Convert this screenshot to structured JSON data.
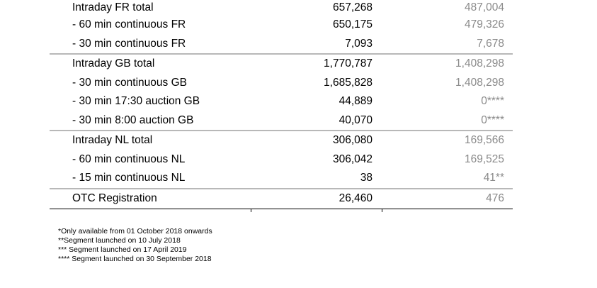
{
  "groups": [
    {
      "rows": [
        {
          "label": "Intraday FR total",
          "v1": "657,268",
          "v2": "487,004"
        },
        {
          "label": "- 60 min continuous FR",
          "v1": "650,175",
          "v2": "479,326"
        },
        {
          "label": "- 30 min continuous FR",
          "v1": "7,093",
          "v2": "7,678"
        }
      ]
    },
    {
      "rows": [
        {
          "label": "Intraday GB total",
          "v1": "1,770,787",
          "v2": "1,408,298"
        },
        {
          "label": "- 30 min continuous GB",
          "v1": "1,685,828",
          "v2": "1,408,298"
        },
        {
          "label": "- 30 min 17:30 auction GB",
          "v1": "44,889",
          "v2": "0****"
        },
        {
          "label": "- 30 min 8:00 auction GB",
          "v1": "40,070",
          "v2": "0****"
        }
      ]
    },
    {
      "rows": [
        {
          "label": "Intraday NL total",
          "v1": "306,080",
          "v2": "169,566"
        },
        {
          "label": "- 60 min continuous NL",
          "v1": "306,042",
          "v2": "169,525"
        },
        {
          "label": "- 15 min continuous NL",
          "v1": "38",
          "v2": "41**"
        }
      ]
    },
    {
      "rows": [
        {
          "label": "OTC Registration",
          "v1": "26,460",
          "v2": "476"
        }
      ]
    }
  ],
  "notes": [
    "*Only available from 01 October 2018 onwards",
    "**Segment launched on 10 July 2018",
    "*** Segment launched on 17 April 2019",
    "**** Segment launched on 30 September 2018"
  ]
}
